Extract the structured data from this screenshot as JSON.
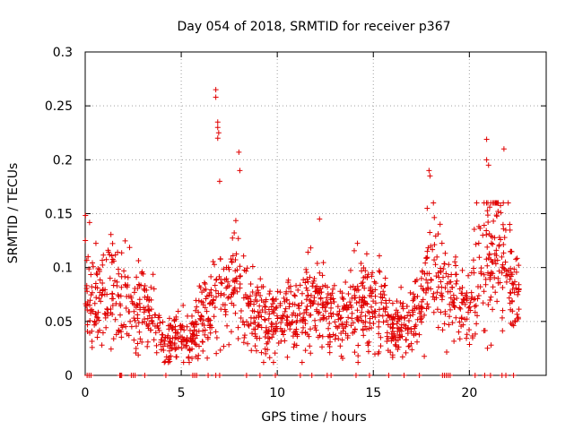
{
  "chart_data": {
    "type": "scatter",
    "title": "Day 054 of 2018, SRMTID for receiver p367",
    "xlabel": "GPS time / hours",
    "ylabel": "SRMTID / TECUs",
    "xlim": [
      0,
      24
    ],
    "ylim": [
      0,
      0.3
    ],
    "xticks": [
      0,
      5,
      10,
      15,
      20
    ],
    "xtick_labels": [
      "0",
      "5",
      "10",
      "15",
      "20"
    ],
    "yticks": [
      0,
      0.05,
      0.1,
      0.15,
      0.2,
      0.25,
      0.3
    ],
    "ytick_labels": [
      "0",
      "0.05",
      "0.1",
      "0.15",
      "0.2",
      "0.25",
      "0.3"
    ],
    "grid": true,
    "marker": "plus",
    "color": "#e00000",
    "profile": {
      "hours": [
        0,
        0.5,
        1,
        1.5,
        2,
        2.5,
        3,
        3.5,
        4,
        4.5,
        5,
        5.5,
        6,
        6.5,
        7,
        7.5,
        8,
        8.5,
        9,
        9.5,
        10,
        10.5,
        11,
        11.5,
        12,
        12.5,
        13,
        13.5,
        14,
        14.5,
        15,
        15.5,
        16,
        16.5,
        17,
        17.5,
        18,
        18.5,
        19,
        19.5,
        20,
        20.5,
        21,
        21.5,
        22,
        22.5
      ],
      "typical_srmtid": [
        0.09,
        0.07,
        0.075,
        0.08,
        0.07,
        0.06,
        0.065,
        0.06,
        0.03,
        0.035,
        0.04,
        0.035,
        0.05,
        0.06,
        0.07,
        0.08,
        0.085,
        0.06,
        0.055,
        0.05,
        0.05,
        0.055,
        0.05,
        0.06,
        0.07,
        0.065,
        0.05,
        0.06,
        0.065,
        0.07,
        0.07,
        0.06,
        0.045,
        0.045,
        0.05,
        0.07,
        0.11,
        0.09,
        0.07,
        0.065,
        0.06,
        0.09,
        0.11,
        0.12,
        0.09,
        0.07
      ]
    },
    "peaks": [
      {
        "x": 6.8,
        "y": 0.265
      },
      {
        "x": 6.8,
        "y": 0.258
      },
      {
        "x": 6.9,
        "y": 0.235
      },
      {
        "x": 6.9,
        "y": 0.23
      },
      {
        "x": 6.95,
        "y": 0.225
      },
      {
        "x": 6.9,
        "y": 0.22
      },
      {
        "x": 8.0,
        "y": 0.207
      },
      {
        "x": 8.05,
        "y": 0.19
      },
      {
        "x": 20.9,
        "y": 0.219
      },
      {
        "x": 21.8,
        "y": 0.21
      },
      {
        "x": 20.9,
        "y": 0.2
      },
      {
        "x": 21.0,
        "y": 0.195
      },
      {
        "x": 17.9,
        "y": 0.19
      },
      {
        "x": 17.95,
        "y": 0.185
      },
      {
        "x": 7.0,
        "y": 0.18
      },
      {
        "x": 12.2,
        "y": 0.145
      },
      {
        "x": 22.1,
        "y": 0.14
      },
      {
        "x": 0.15,
        "y": 0.11
      },
      {
        "x": 4.35,
        "y": 0.015
      },
      {
        "x": 4.45,
        "y": 0.018
      }
    ],
    "zero_points_x": [
      0.1,
      0.2,
      0.3,
      1.8,
      1.85,
      1.9,
      2.4,
      2.5,
      2.6,
      3.1,
      4.2,
      5.6,
      5.7,
      5.8,
      6.4,
      6.8,
      7.0,
      8.4,
      9.1,
      9.9,
      11.2,
      11.8,
      12.6,
      12.8,
      14.1,
      14.8,
      15.8,
      16.6,
      17.4,
      18.6,
      18.7,
      18.8,
      18.9,
      19.0,
      20.3,
      20.8,
      21.1,
      21.7,
      21.9,
      22.3
    ]
  }
}
